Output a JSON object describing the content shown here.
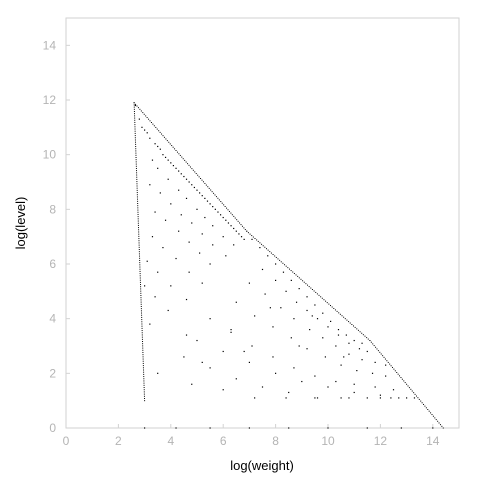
{
  "chart_data": {
    "type": "scatter",
    "title": "",
    "xlabel": "log(weight)",
    "ylabel": "log(level)",
    "xlim": [
      0,
      15
    ],
    "ylim": [
      0,
      15
    ],
    "xticks": [
      0,
      2,
      4,
      6,
      8,
      10,
      12,
      14
    ],
    "yticks": [
      0,
      2,
      4,
      6,
      8,
      10,
      12,
      14
    ],
    "grid": false,
    "legend": "none",
    "point_color": "#000000",
    "axis_color": "#d2d2d2",
    "tick_label_color": "#b4b4b4",
    "boundary": {
      "upper_edge": [
        [
          2.6,
          11.9
        ],
        [
          6.9,
          7.2
        ],
        [
          11.6,
          3.2
        ],
        [
          14.4,
          0
        ]
      ],
      "left_edge": [
        [
          2.6,
          11.9
        ],
        [
          3.0,
          1.0
        ]
      ]
    },
    "x": [
      2.65,
      2.8,
      2.9,
      3.0,
      3.1,
      3.2,
      3.4,
      3.5,
      3.6,
      3.7,
      3.8,
      3.9,
      4.0,
      4.1,
      4.2,
      4.3,
      4.4,
      4.5,
      4.6,
      4.7,
      4.8,
      4.9,
      5.0,
      5.1,
      5.2,
      5.3,
      5.4,
      5.5,
      5.6,
      5.7,
      5.8,
      5.9,
      6.0,
      6.1,
      6.2,
      6.3,
      6.4,
      6.5,
      6.6,
      6.7,
      6.8,
      3.3,
      3.5,
      3.9,
      4.3,
      4.6,
      5.0,
      5.3,
      5.6,
      6.0,
      6.4,
      3.2,
      3.6,
      4.0,
      4.4,
      4.8,
      5.2,
      5.6,
      6.1,
      3.4,
      3.8,
      4.3,
      4.7,
      5.1,
      5.5,
      3.3,
      3.7,
      4.2,
      4.7,
      5.2,
      3.1,
      3.5,
      4.0,
      4.6,
      3.0,
      3.4,
      3.9,
      7.1,
      7.4,
      7.7,
      8.0,
      8.3,
      8.6,
      8.9,
      9.2,
      9.5,
      9.8,
      10.1,
      10.4,
      10.7,
      11.0,
      11.3,
      7.5,
      8.0,
      8.4,
      8.8,
      9.2,
      9.6,
      10.0,
      10.4,
      10.8,
      11.2,
      11.5,
      7.0,
      7.6,
      8.2,
      8.7,
      9.3,
      9.8,
      10.3,
      10.8,
      11.3,
      11.8,
      6.5,
      7.2,
      7.9,
      8.6,
      9.2,
      9.9,
      10.5,
      11.1,
      11.7,
      12.2,
      5.5,
      6.3,
      7.1,
      7.9,
      8.7,
      9.5,
      10.3,
      11.0,
      11.8,
      12.5,
      5.0,
      6.0,
      7.0,
      8.0,
      9.0,
      10.0,
      11.0,
      12.0,
      12.7,
      4.5,
      5.5,
      6.5,
      7.5,
      8.5,
      9.5,
      10.5,
      11.5,
      12.4,
      13.0,
      3.5,
      4.8,
      6.0,
      7.2,
      8.4,
      9.6,
      10.8,
      12.0,
      13.3,
      3.0,
      4.2,
      5.5,
      7.0,
      8.5,
      10.0,
      11.5,
      12.8,
      14.0,
      3.2,
      4.6,
      6.3,
      7.8,
      9.4,
      5.2,
      6.8,
      8.9,
      10.6,
      12.2
    ],
    "y": [
      11.8,
      11.3,
      11.0,
      10.9,
      10.8,
      10.6,
      10.4,
      10.3,
      10.2,
      10.0,
      9.9,
      9.8,
      9.7,
      9.6,
      9.5,
      9.4,
      9.3,
      9.2,
      9.1,
      9.0,
      8.9,
      8.8,
      8.7,
      8.6,
      8.5,
      8.4,
      8.3,
      8.2,
      8.1,
      8.0,
      7.9,
      7.8,
      7.7,
      7.6,
      7.5,
      7.4,
      7.3,
      7.2,
      7.1,
      7.0,
      6.9,
      9.8,
      9.5,
      9.1,
      8.7,
      8.4,
      8.0,
      7.7,
      7.4,
      7.0,
      6.7,
      8.9,
      8.6,
      8.2,
      7.8,
      7.5,
      7.1,
      6.7,
      6.3,
      7.9,
      7.6,
      7.2,
      6.8,
      6.4,
      6.0,
      7.0,
      6.6,
      6.2,
      5.7,
      5.3,
      6.1,
      5.7,
      5.2,
      4.7,
      5.2,
      4.8,
      4.3,
      6.9,
      6.6,
      6.3,
      6.0,
      5.7,
      5.4,
      5.1,
      4.8,
      4.5,
      4.2,
      3.9,
      3.6,
      3.4,
      3.2,
      3.1,
      5.8,
      5.4,
      5.0,
      4.6,
      4.3,
      4.0,
      3.7,
      3.4,
      3.1,
      2.9,
      2.8,
      5.3,
      4.9,
      4.4,
      4.0,
      3.6,
      3.3,
      3.0,
      2.7,
      2.5,
      2.4,
      4.6,
      4.1,
      3.7,
      3.3,
      2.9,
      2.6,
      2.3,
      2.1,
      2.0,
      1.9,
      4.0,
      3.5,
      3.0,
      2.6,
      2.2,
      1.9,
      1.7,
      1.6,
      1.5,
      1.4,
      3.2,
      2.8,
      2.4,
      2.0,
      1.7,
      1.5,
      1.3,
      1.2,
      1.1,
      2.6,
      2.2,
      1.8,
      1.5,
      1.3,
      1.1,
      1.1,
      1.1,
      1.1,
      1.1,
      2.0,
      1.6,
      1.4,
      1.1,
      1.1,
      1.1,
      1.1,
      1.1,
      1.1,
      0.0,
      0.0,
      0.0,
      0.0,
      0.0,
      0.0,
      0.0,
      0.0,
      0.0,
      3.8,
      3.4,
      3.6,
      4.4,
      4.1,
      2.4,
      2.8,
      3.0,
      2.6,
      2.3
    ]
  }
}
